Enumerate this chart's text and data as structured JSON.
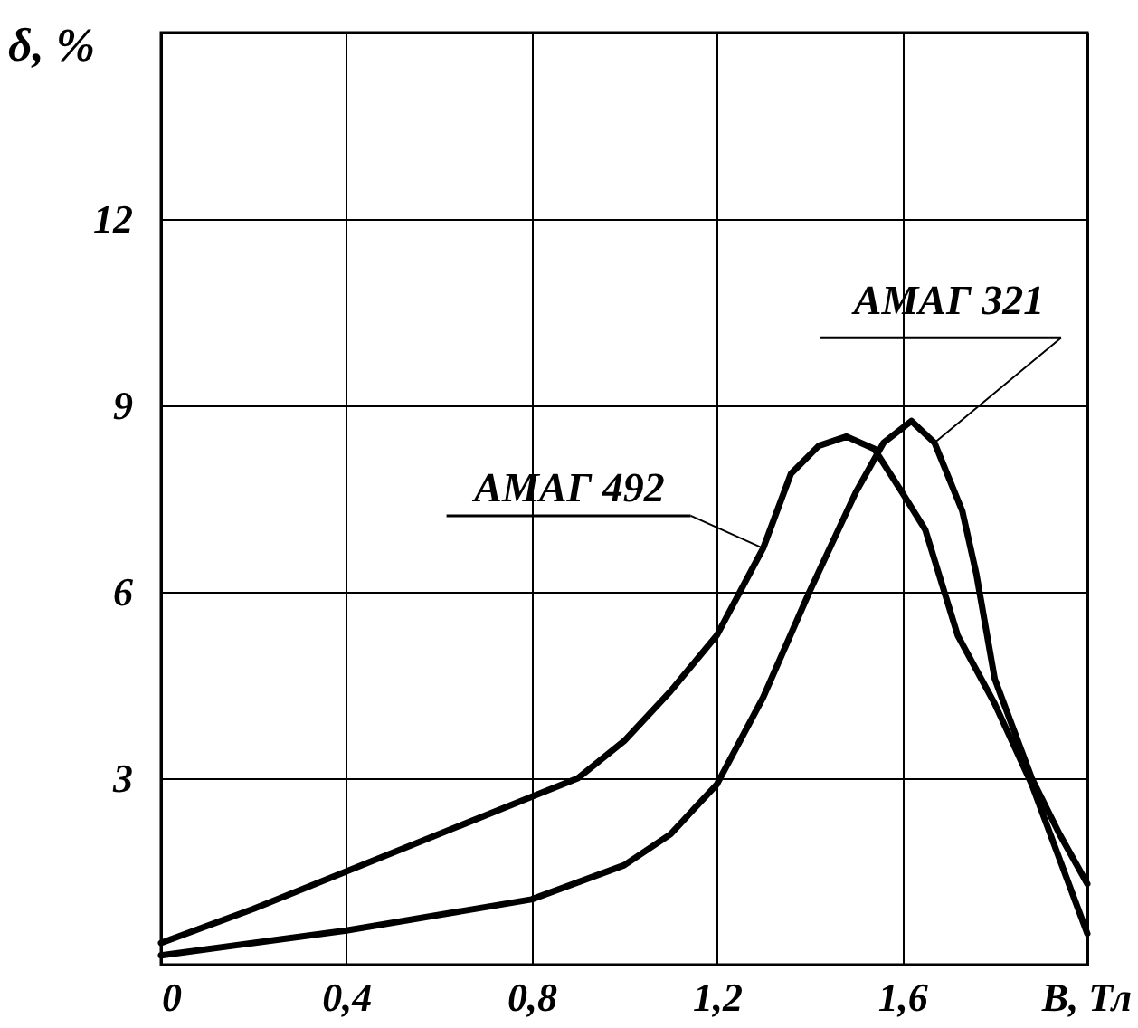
{
  "chart_data": {
    "type": "line",
    "xlabel": "B, Тл",
    "ylabel": "δ, %",
    "xlim": [
      0,
      2.0
    ],
    "ylim": [
      0,
      15
    ],
    "xticks": [
      0,
      {
        "value": 0.4,
        "label": "0,4"
      },
      {
        "value": 0.8,
        "label": "0,8"
      },
      {
        "value": 1.2,
        "label": "1,2"
      },
      {
        "value": 1.6,
        "label": "1,6"
      },
      {
        "value": 2.0,
        "label": null
      }
    ],
    "yticks": [
      {
        "value": 0,
        "label": null
      },
      3,
      6,
      9,
      12,
      {
        "value": 15,
        "label": null
      }
    ],
    "grid": true,
    "marker": "none",
    "line_style": "solid",
    "series": [
      {
        "name": "АМАГ 492",
        "color": "#000000",
        "x": [
          0,
          0.2,
          0.4,
          0.6,
          0.8,
          0.9,
          1.0,
          1.1,
          1.2,
          1.3,
          1.36,
          1.42,
          1.48,
          1.54,
          1.6,
          1.65,
          1.72,
          1.8,
          1.88,
          1.94,
          2.0
        ],
        "values": [
          0.35,
          0.9,
          1.5,
          2.1,
          2.7,
          3.0,
          3.6,
          4.4,
          5.3,
          6.7,
          7.9,
          8.35,
          8.5,
          8.3,
          7.6,
          7.0,
          5.3,
          4.2,
          2.9,
          1.7,
          0.5
        ]
      },
      {
        "name": "АМАГ 321",
        "color": "#000000",
        "x": [
          0,
          0.2,
          0.4,
          0.6,
          0.8,
          1.0,
          1.1,
          1.2,
          1.3,
          1.4,
          1.5,
          1.56,
          1.62,
          1.67,
          1.73,
          1.76,
          1.8,
          1.88,
          1.94,
          2.0
        ],
        "values": [
          0.15,
          0.35,
          0.55,
          0.8,
          1.05,
          1.6,
          2.1,
          2.9,
          4.3,
          6.0,
          7.6,
          8.4,
          8.75,
          8.4,
          7.3,
          6.3,
          4.6,
          3.0,
          2.1,
          1.3
        ]
      }
    ]
  }
}
